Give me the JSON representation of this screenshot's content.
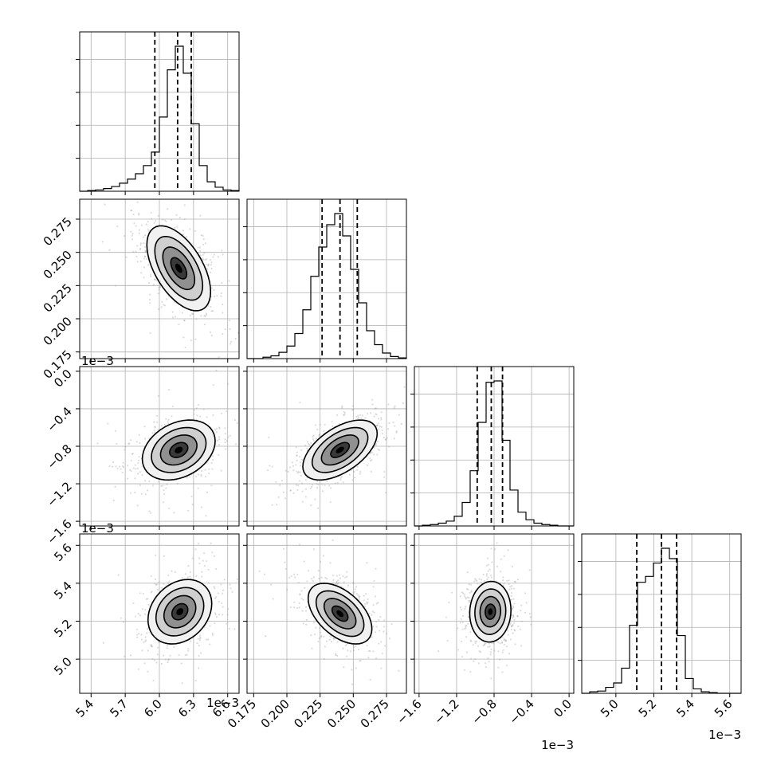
{
  "chart_data": {
    "type": "corner",
    "colors": {
      "ink": "#000000",
      "grid": "#b0b0b0",
      "scatter": "#9a9a9a"
    },
    "grid": true,
    "parameters": [
      {
        "id": "p0",
        "range": [
          5.3,
          6.7
        ],
        "ticks": [
          5.4,
          5.7,
          6.0,
          6.3,
          6.6
        ],
        "tick_labels": [
          "5.4",
          "5.7",
          "6.0",
          "6.3",
          "6.6"
        ],
        "offset_label": "1e−3",
        "quantiles": [
          5.96,
          6.16,
          6.28
        ],
        "hist": {
          "edges": [
            5.3,
            5.37,
            5.44,
            5.51,
            5.58,
            5.65,
            5.72,
            5.79,
            5.86,
            5.93,
            6.0,
            6.07,
            6.14,
            6.21,
            6.28,
            6.35,
            6.42,
            6.49,
            6.56,
            6.63,
            6.7
          ],
          "counts": [
            0,
            1,
            2,
            4,
            7,
            12,
            18,
            26,
            38,
            58,
            110,
            180,
            215,
            175,
            100,
            38,
            14,
            6,
            2,
            1
          ]
        }
      },
      {
        "id": "p1",
        "range": [
          0.17,
          0.29
        ],
        "ticks": [
          0.175,
          0.2,
          0.225,
          0.25,
          0.275
        ],
        "tick_labels": [
          "0.175",
          "0.200",
          "0.225",
          "0.250",
          "0.275"
        ],
        "offset_label": "",
        "quantiles": [
          0.2265,
          0.24,
          0.253
        ],
        "hist": {
          "edges": [
            0.17,
            0.176,
            0.182,
            0.188,
            0.194,
            0.2,
            0.206,
            0.212,
            0.218,
            0.224,
            0.23,
            0.236,
            0.242,
            0.248,
            0.254,
            0.26,
            0.266,
            0.272,
            0.278,
            0.284,
            0.29
          ],
          "counts": [
            0,
            0,
            2,
            4,
            9,
            18,
            36,
            70,
            118,
            160,
            192,
            208,
            176,
            128,
            80,
            40,
            20,
            8,
            3,
            1
          ]
        }
      },
      {
        "id": "p2",
        "range": [
          -1.65,
          0.05
        ],
        "ticks": [
          -1.6,
          -1.2,
          -0.8,
          -0.4,
          0.0
        ],
        "tick_labels": [
          "−1.6",
          "−1.2",
          "−0.8",
          "−0.4",
          "0.0"
        ],
        "offset_label": "1e−3",
        "quantiles": [
          -0.98,
          -0.83,
          -0.71
        ],
        "hist": {
          "edges": [
            -1.65,
            -1.565,
            -1.48,
            -1.395,
            -1.31,
            -1.225,
            -1.14,
            -1.055,
            -0.97,
            -0.885,
            -0.8,
            -0.715,
            -0.63,
            -0.545,
            -0.46,
            -0.375,
            -0.29,
            -0.205,
            -0.12,
            -0.035,
            0.05
          ],
          "counts": [
            0,
            1,
            2,
            4,
            7,
            14,
            34,
            80,
            150,
            208,
            210,
            124,
            52,
            20,
            9,
            4,
            2,
            1,
            0,
            0
          ]
        }
      },
      {
        "id": "p3",
        "range": [
          4.82,
          5.66
        ],
        "ticks": [
          5.0,
          5.2,
          5.4,
          5.6
        ],
        "tick_labels": [
          "5.0",
          "5.2",
          "5.4",
          "5.6"
        ],
        "offset_label": "1e−3",
        "quantiles": [
          5.11,
          5.24,
          5.32
        ],
        "hist": {
          "edges": [
            4.82,
            4.862,
            4.904,
            4.946,
            4.988,
            5.03,
            5.072,
            5.114,
            5.156,
            5.198,
            5.24,
            5.282,
            5.324,
            5.366,
            5.408,
            5.45,
            5.492,
            5.534,
            5.576,
            5.618,
            5.66
          ],
          "counts": [
            0,
            2,
            3,
            8,
            14,
            34,
            92,
            150,
            158,
            176,
            196,
            182,
            78,
            20,
            6,
            2,
            1,
            0,
            0,
            0
          ]
        }
      }
    ],
    "pairs": [
      {
        "x": "p0",
        "y": "p1",
        "mean": [
          6.17,
          0.238
        ],
        "sd": [
          0.14,
          0.016
        ],
        "rho": -0.55
      },
      {
        "x": "p0",
        "y": "p2",
        "mean": [
          6.17,
          -0.84
        ],
        "sd": [
          0.16,
          0.16
        ],
        "rho": 0.3
      },
      {
        "x": "p1",
        "y": "p2",
        "mean": [
          0.24,
          -0.84
        ],
        "sd": [
          0.014,
          0.16
        ],
        "rho": 0.55
      },
      {
        "x": "p0",
        "y": "p3",
        "mean": [
          6.18,
          5.25
        ],
        "sd": [
          0.14,
          0.085
        ],
        "rho": 0.25
      },
      {
        "x": "p1",
        "y": "p3",
        "mean": [
          0.24,
          5.24
        ],
        "sd": [
          0.012,
          0.08
        ],
        "rho": -0.5
      },
      {
        "x": "p2",
        "y": "p3",
        "mean": [
          -0.84,
          5.25
        ],
        "sd": [
          0.11,
          0.08
        ],
        "rho": 0.05
      }
    ]
  }
}
